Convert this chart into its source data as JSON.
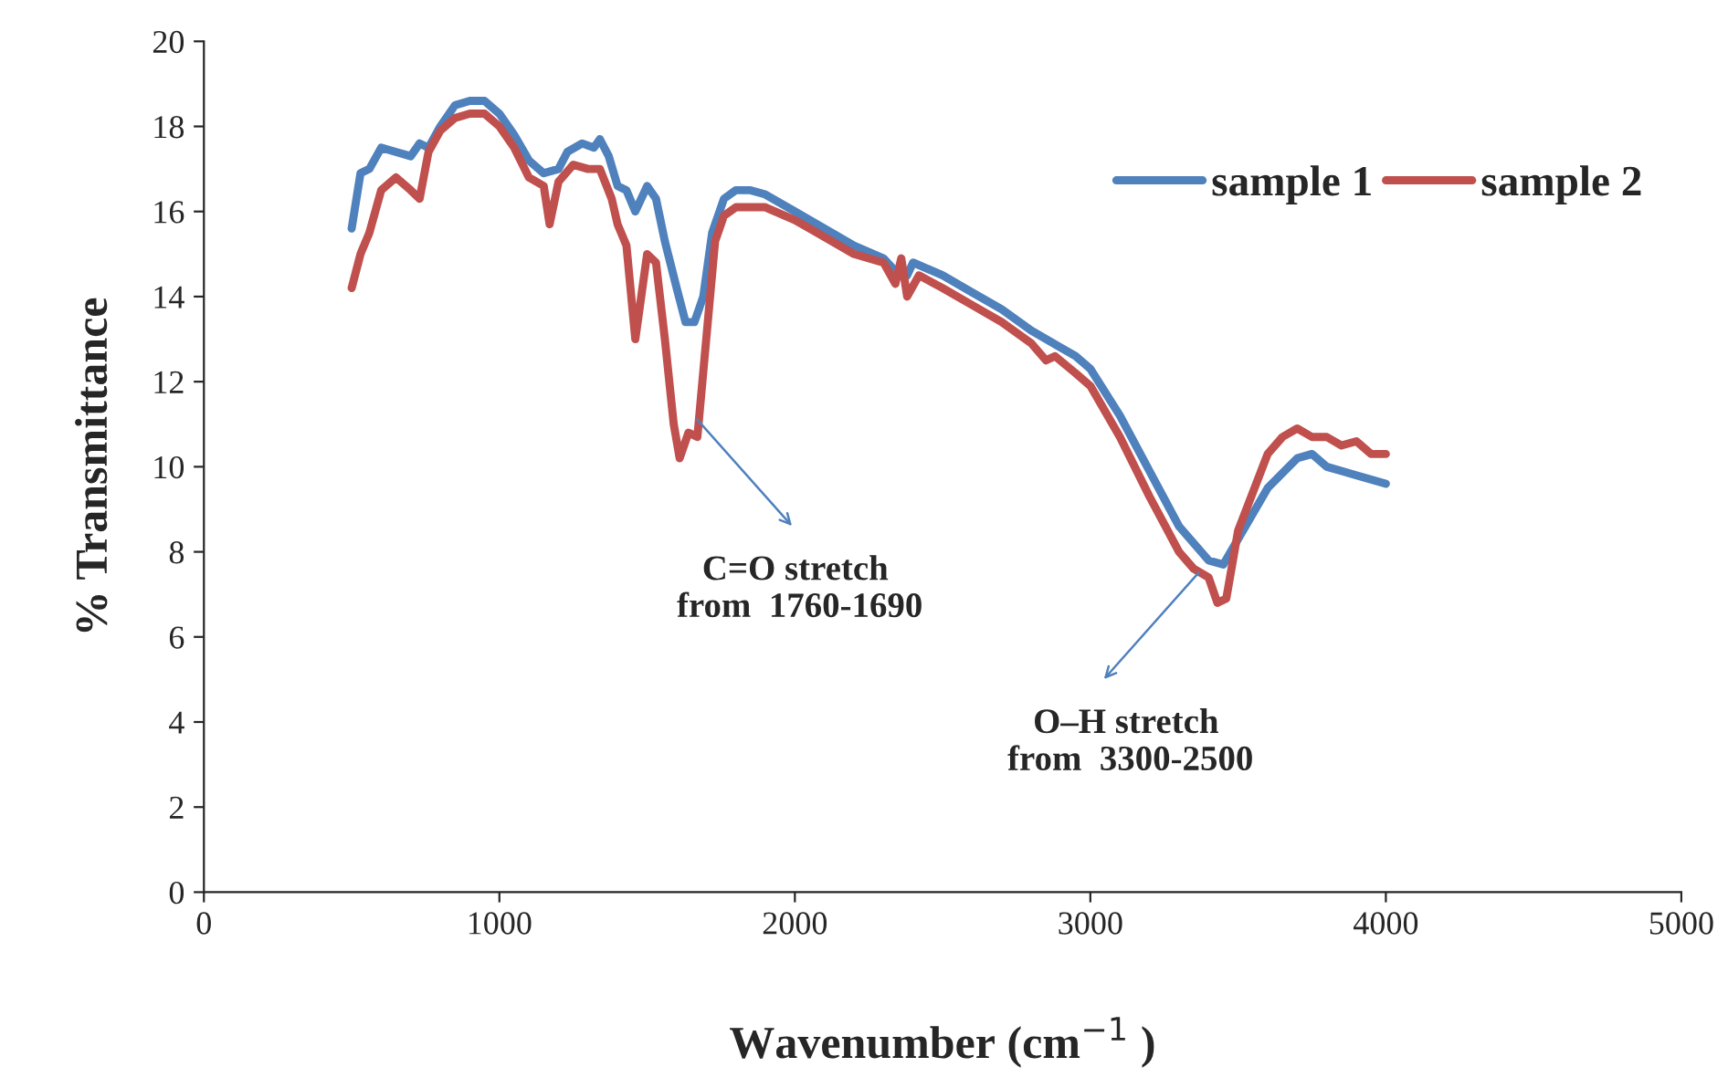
{
  "chart_data": {
    "type": "line",
    "xlabel": "Wavenumber (cm$^{−1}$ )",
    "ylabel": "% Transmittance",
    "xlim": [
      0,
      5000
    ],
    "xticks": [
      0,
      1000,
      2000,
      3000,
      4000,
      5000
    ],
    "ylim": [
      0,
      20
    ],
    "yticks": [
      0,
      2,
      4,
      6,
      8,
      10,
      12,
      14,
      16,
      18,
      20
    ],
    "grid": false,
    "legend": "top right",
    "marker": "none",
    "line_style": "solid",
    "series": [
      {
        "name": "sample 1",
        "color": "#4f81bd",
        "x": [
          500,
          530,
          560,
          600,
          650,
          700,
          730,
          760,
          800,
          850,
          900,
          950,
          1000,
          1050,
          1100,
          1150,
          1200,
          1230,
          1280,
          1320,
          1340,
          1370,
          1400,
          1430,
          1460,
          1500,
          1530,
          1560,
          1600,
          1630,
          1660,
          1690,
          1720,
          1760,
          1800,
          1850,
          1900,
          2000,
          2100,
          2200,
          2300,
          2340,
          2380,
          2400,
          2500,
          2600,
          2700,
          2800,
          2900,
          2950,
          3000,
          3100,
          3200,
          3300,
          3400,
          3450,
          3500,
          3600,
          3700,
          3750,
          3800,
          3850,
          3900,
          4000
        ],
        "values": [
          15.6,
          16.9,
          17.0,
          17.5,
          17.4,
          17.3,
          17.6,
          17.5,
          18.0,
          18.5,
          18.6,
          18.6,
          18.3,
          17.8,
          17.2,
          16.9,
          17.0,
          17.4,
          17.6,
          17.5,
          17.7,
          17.3,
          16.6,
          16.5,
          16.0,
          16.6,
          16.3,
          15.3,
          14.2,
          13.4,
          13.4,
          14.0,
          15.5,
          16.3,
          16.5,
          16.5,
          16.4,
          16.0,
          15.6,
          15.2,
          14.9,
          14.6,
          14.5,
          14.8,
          14.5,
          14.1,
          13.7,
          13.2,
          12.8,
          12.6,
          12.3,
          11.2,
          9.9,
          8.6,
          7.8,
          7.7,
          8.3,
          9.5,
          10.2,
          10.3,
          10.0,
          9.9,
          9.8,
          9.6
        ]
      },
      {
        "name": "sample 2",
        "color": "#c0504d",
        "x": [
          500,
          530,
          560,
          600,
          650,
          700,
          730,
          760,
          800,
          850,
          900,
          950,
          1000,
          1050,
          1100,
          1150,
          1170,
          1200,
          1250,
          1300,
          1340,
          1380,
          1400,
          1430,
          1460,
          1500,
          1530,
          1560,
          1590,
          1610,
          1640,
          1670,
          1700,
          1730,
          1760,
          1800,
          1900,
          2000,
          2100,
          2200,
          2300,
          2340,
          2360,
          2380,
          2420,
          2500,
          2600,
          2700,
          2800,
          2850,
          2880,
          2950,
          3000,
          3100,
          3200,
          3300,
          3350,
          3400,
          3430,
          3460,
          3500,
          3600,
          3650,
          3700,
          3750,
          3800,
          3850,
          3900,
          3950,
          4000
        ],
        "values": [
          14.2,
          15.0,
          15.5,
          16.5,
          16.8,
          16.5,
          16.3,
          17.4,
          17.9,
          18.2,
          18.3,
          18.3,
          18.0,
          17.5,
          16.8,
          16.6,
          15.7,
          16.7,
          17.1,
          17.0,
          17.0,
          16.3,
          15.7,
          15.2,
          13.0,
          15.0,
          14.8,
          13.0,
          11.0,
          10.2,
          10.8,
          10.7,
          13.0,
          15.3,
          15.9,
          16.1,
          16.1,
          15.8,
          15.4,
          15.0,
          14.8,
          14.3,
          14.9,
          14.0,
          14.5,
          14.2,
          13.8,
          13.4,
          12.9,
          12.5,
          12.6,
          12.2,
          11.9,
          10.7,
          9.3,
          8.0,
          7.6,
          7.4,
          6.8,
          6.9,
          8.5,
          10.3,
          10.7,
          10.9,
          10.7,
          10.7,
          10.5,
          10.6,
          10.3,
          10.3
        ]
      }
    ],
    "annotations": [
      {
        "text": "C=O stretch\n from  1760-1690",
        "x": 1658,
        "y": 11.2
      },
      {
        "text": "O–H stretch\n from  3300-2500",
        "x": 3378,
        "y": 7.6
      }
    ]
  }
}
